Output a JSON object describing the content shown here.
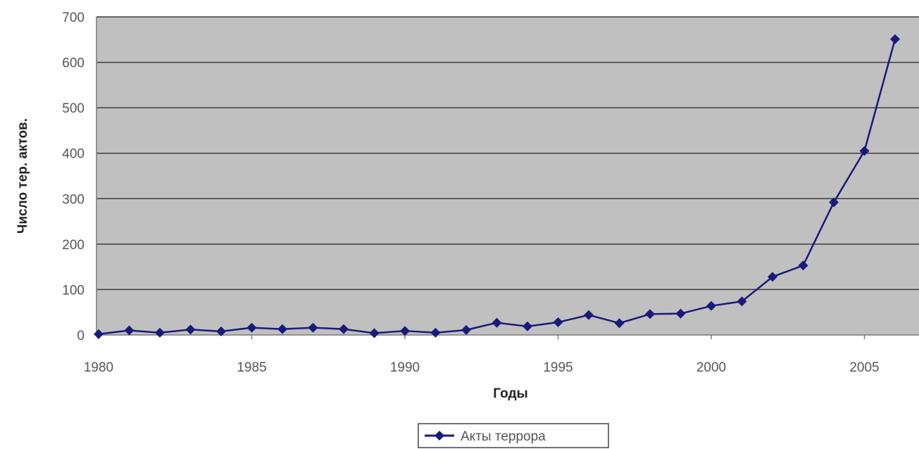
{
  "chart_data": {
    "type": "line",
    "title": "",
    "xlabel": "Годы",
    "ylabel": "Число тер. актов.",
    "xlim": [
      1980,
      2006
    ],
    "ylim": [
      0,
      700
    ],
    "x_ticks": [
      1980,
      1985,
      1990,
      1995,
      2000,
      2005
    ],
    "y_ticks": [
      0,
      100,
      200,
      300,
      400,
      500,
      600,
      700
    ],
    "grid": true,
    "legend": "bottom",
    "plot_background": "#c0c0c0",
    "series": [
      {
        "name": "Акты террора",
        "color": "#1a1a7a",
        "x": [
          1980,
          1981,
          1982,
          1983,
          1984,
          1985,
          1986,
          1987,
          1988,
          1989,
          1990,
          1991,
          1992,
          1993,
          1994,
          1995,
          1996,
          1997,
          1998,
          1999,
          2000,
          2001,
          2002,
          2003,
          2004,
          2005,
          2006
        ],
        "values": [
          2,
          10,
          5,
          12,
          8,
          16,
          13,
          16,
          13,
          4,
          9,
          5,
          11,
          27,
          19,
          28,
          44,
          26,
          46,
          47,
          64,
          74,
          128,
          153,
          292,
          405,
          651
        ]
      }
    ]
  }
}
